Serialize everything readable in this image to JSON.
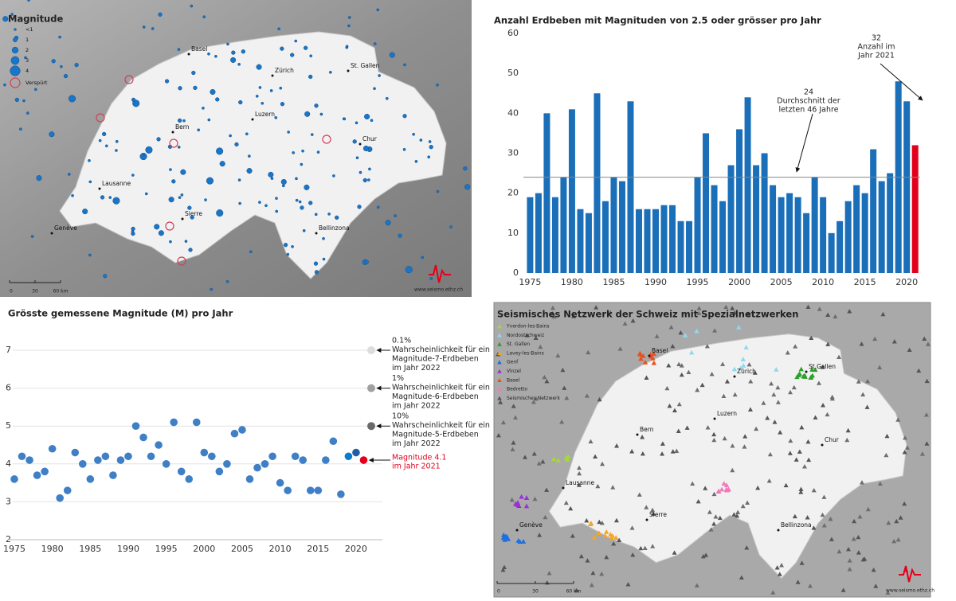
{
  "map_earthquakes": {
    "legend_title": "Magnitude",
    "legend": [
      "<1",
      "1",
      "2",
      "3",
      "4"
    ],
    "felt_label": "Verspürt",
    "cities": [
      "Basel",
      "Zürich",
      "St. Gallen",
      "Bern",
      "Luzern",
      "Chur",
      "Lausanne",
      "Sierre",
      "Genève",
      "Bellinzona"
    ],
    "scale": [
      "0",
      "30",
      "60 km"
    ],
    "credit": "www.seismo.ethz.ch"
  },
  "chart_data": [
    {
      "type": "bar",
      "title": "Anzahl Erdbeben mit Magnituden von 2.5 oder grösser pro Jahr",
      "x": [
        1975,
        1976,
        1977,
        1978,
        1979,
        1980,
        1981,
        1982,
        1983,
        1984,
        1985,
        1986,
        1987,
        1988,
        1989,
        1990,
        1991,
        1992,
        1993,
        1994,
        1995,
        1996,
        1997,
        1998,
        1999,
        2000,
        2001,
        2002,
        2003,
        2004,
        2005,
        2006,
        2007,
        2008,
        2009,
        2010,
        2011,
        2012,
        2013,
        2014,
        2015,
        2016,
        2017,
        2018,
        2019,
        2020,
        2021
      ],
      "values": [
        19,
        20,
        40,
        19,
        24,
        41,
        16,
        15,
        45,
        18,
        24,
        23,
        43,
        16,
        16,
        16,
        17,
        17,
        13,
        13,
        24,
        35,
        22,
        18,
        27,
        36,
        44,
        27,
        30,
        22,
        19,
        20,
        19,
        15,
        24,
        19,
        10,
        13,
        18,
        22,
        20,
        31,
        23,
        25,
        48,
        43,
        32
      ],
      "colors": [
        "#1a6fb8",
        "#1a6fb8",
        "#1a6fb8",
        "#1a6fb8",
        "#1a6fb8",
        "#1a6fb8",
        "#1a6fb8",
        "#1a6fb8",
        "#1a6fb8",
        "#1a6fb8",
        "#1a6fb8",
        "#1a6fb8",
        "#1a6fb8",
        "#1a6fb8",
        "#1a6fb8",
        "#1a6fb8",
        "#1a6fb8",
        "#1a6fb8",
        "#1a6fb8",
        "#1a6fb8",
        "#1a6fb8",
        "#1a6fb8",
        "#1a6fb8",
        "#1a6fb8",
        "#1a6fb8",
        "#1a6fb8",
        "#1a6fb8",
        "#1a6fb8",
        "#1a6fb8",
        "#1a6fb8",
        "#1a6fb8",
        "#1a6fb8",
        "#1a6fb8",
        "#1a6fb8",
        "#1a6fb8",
        "#1a6fb8",
        "#1a6fb8",
        "#1a6fb8",
        "#1a6fb8",
        "#1a6fb8",
        "#1a6fb8",
        "#1a6fb8",
        "#1a6fb8",
        "#1a6fb8",
        "#1a6fb8",
        "#1a6fb8",
        "#e3001b"
      ],
      "xlim": [
        1974.2,
        2021.6
      ],
      "ylim": [
        0,
        60
      ],
      "xticks": [
        1975,
        1980,
        1985,
        1990,
        1995,
        2000,
        2005,
        2010,
        2015,
        2020
      ],
      "yticks": [
        0,
        10,
        20,
        30,
        40,
        50,
        60
      ],
      "reference_line": {
        "value": 24,
        "color": "#888888"
      },
      "annotations": [
        {
          "value": 24,
          "lines": [
            "Durchschnitt der",
            "letzten 46 Jahre"
          ]
        },
        {
          "value": 32,
          "lines": [
            "Anzahl im",
            "Jahr 2021"
          ]
        }
      ]
    },
    {
      "type": "scatter",
      "title": "Grösste gemessene Magnitude (M) pro Jahr",
      "x": [
        1975,
        1976,
        1977,
        1978,
        1979,
        1980,
        1981,
        1982,
        1983,
        1984,
        1985,
        1986,
        1987,
        1988,
        1989,
        1990,
        1991,
        1992,
        1993,
        1994,
        1995,
        1996,
        1997,
        1998,
        1999,
        2000,
        2001,
        2002,
        2003,
        2004,
        2005,
        2006,
        2007,
        2008,
        2009,
        2010,
        2011,
        2012,
        2013,
        2014,
        2015,
        2016,
        2017,
        2018,
        2019,
        2020,
        2021
      ],
      "values": [
        3.6,
        4.2,
        4.1,
        3.7,
        3.8,
        4.4,
        3.1,
        3.3,
        4.3,
        4.0,
        3.6,
        4.1,
        4.2,
        3.7,
        4.1,
        4.2,
        5.0,
        4.7,
        4.2,
        4.5,
        4.0,
        5.1,
        3.8,
        3.6,
        5.1,
        4.3,
        4.2,
        3.8,
        4.0,
        4.8,
        4.9,
        3.6,
        3.9,
        4.0,
        4.2,
        3.5,
        3.3,
        4.2,
        4.1,
        3.3,
        3.3,
        4.1,
        4.6,
        3.2,
        4.2,
        4.3,
        4.1
      ],
      "colors": [
        "#3f7fc6",
        "#3f7fc6",
        "#3f7fc6",
        "#3f7fc6",
        "#3f7fc6",
        "#3f7fc6",
        "#3f7fc6",
        "#3f7fc6",
        "#3f7fc6",
        "#3f7fc6",
        "#3f7fc6",
        "#3f7fc6",
        "#3f7fc6",
        "#3f7fc6",
        "#3f7fc6",
        "#3f7fc6",
        "#3f7fc6",
        "#3f7fc6",
        "#3f7fc6",
        "#3f7fc6",
        "#3f7fc6",
        "#3f7fc6",
        "#3f7fc6",
        "#3f7fc6",
        "#3f7fc6",
        "#3f7fc6",
        "#3f7fc6",
        "#3f7fc6",
        "#3f7fc6",
        "#3f7fc6",
        "#3f7fc6",
        "#3f7fc6",
        "#3f7fc6",
        "#3f7fc6",
        "#3f7fc6",
        "#3f7fc6",
        "#3f7fc6",
        "#3f7fc6",
        "#3f7fc6",
        "#3f7fc6",
        "#3f7fc6",
        "#3f7fc6",
        "#3f7fc6",
        "#3f7fc6",
        "#0b7dc8",
        "#1e5fa8",
        "#e3001b"
      ],
      "xlim": [
        1975,
        2022
      ],
      "ylim": [
        2,
        7
      ],
      "xticks": [
        1975,
        1980,
        1985,
        1990,
        1995,
        2000,
        2005,
        2010,
        2015,
        2020
      ],
      "yticks": [
        2,
        3,
        4,
        5,
        6,
        7
      ],
      "grid": true,
      "probabilities": [
        {
          "magnitude": 7,
          "color": "#dcdcdc",
          "lines": [
            "0.1%",
            "Wahrscheinlichkeit für ein",
            "Magnitude-7-Erdbeben",
            "im Jahr 2022"
          ]
        },
        {
          "magnitude": 6,
          "color": "#a0a0a0",
          "lines": [
            "1%",
            "Wahrscheinlichkeit für ein",
            "Magnitude-6-Erdbeben",
            "im Jahr 2022"
          ]
        },
        {
          "magnitude": 5,
          "color": "#6a6a6a",
          "lines": [
            "10%",
            "Wahrscheinlichkeit für ein",
            "Magnitude-5-Erdbeben",
            "im Jahr 2022"
          ]
        }
      ],
      "highlight": {
        "color": "#e3001b",
        "lines": [
          "Magnitude 4.1",
          "im Jahr 2021"
        ]
      }
    }
  ],
  "map_network": {
    "title": "Seismisches Netzwerk der Schweiz mit Spezialnetzwerken",
    "legend": [
      {
        "label": "Yverdon-les-Bains",
        "color": "#a6d83a"
      },
      {
        "label": "Nordostschweiz",
        "color": "#8fd8f0"
      },
      {
        "label": "St. Gallen",
        "color": "#2ca02c"
      },
      {
        "label": "Lavey-les-Bains",
        "color": "#f5a623"
      },
      {
        "label": "Genf",
        "color": "#1f6fe0"
      },
      {
        "label": "Vinzel",
        "color": "#9b30d9"
      },
      {
        "label": "Basel",
        "color": "#e8501e"
      },
      {
        "label": "Bedretto",
        "color": "#f07ab8"
      },
      {
        "label": "Seismisches Netzwerk",
        "color": "#555555"
      }
    ],
    "cities": [
      "Basel",
      "Zürich",
      "St.Gallen",
      "Luzern",
      "Bern",
      "Chur",
      "Lausanne",
      "Genève",
      "Sierre",
      "Bellinzona"
    ],
    "scale": [
      "0",
      "30",
      "60 km"
    ],
    "credit": "www.seismo.ethz.ch"
  }
}
